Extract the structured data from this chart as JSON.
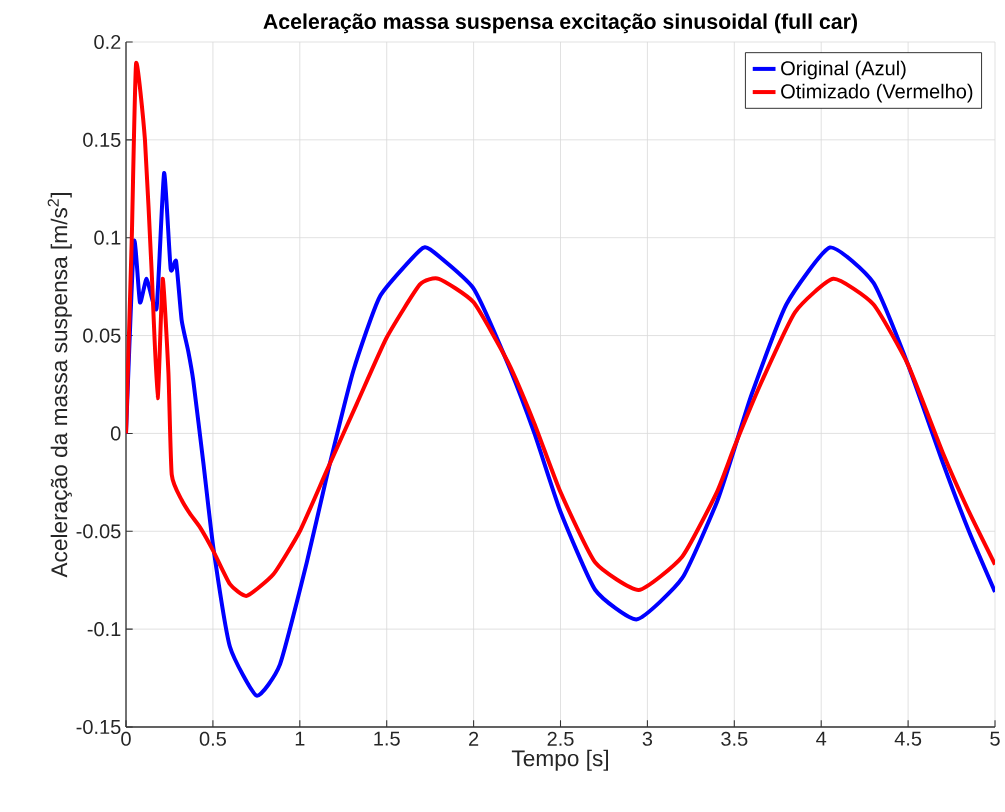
{
  "chart_data": {
    "type": "line",
    "title": "Aceleração massa suspensa excitação sinusoidal (full car)",
    "xlabel": "Tempo [s]",
    "ylabel": "Aceleração da massa suspensa [m/s$^{2}$]",
    "xlim": [
      0,
      5
    ],
    "ylim": [
      -0.15,
      0.2
    ],
    "xticks": [
      0,
      0.5,
      1,
      1.5,
      2,
      2.5,
      3,
      3.5,
      4,
      4.5,
      5
    ],
    "yticks": [
      -0.15,
      -0.1,
      -0.05,
      0,
      0.05,
      0.1,
      0.15,
      0.2
    ],
    "grid": true,
    "legend": "top right",
    "line_style": "solid",
    "marker": "none",
    "series": [
      {
        "name": "Original (Azul)",
        "color": "#0000ff",
        "x": [
          0,
          0.046,
          0.08,
          0.119,
          0.176,
          0.219,
          0.257,
          0.288,
          0.32,
          0.358,
          0.387,
          0.445,
          0.502,
          0.598,
          0.752,
          0.886,
          1.04,
          1.155,
          1.308,
          1.461,
          1.69,
          1.75,
          2.0,
          2.2,
          2.35,
          2.5,
          2.7,
          2.94,
          3.2,
          3.4,
          3.5,
          3.6,
          3.8,
          4.05,
          4.3,
          4.5,
          4.7,
          4.85,
          5.0
        ],
        "values": [
          0,
          0.098,
          0.067,
          0.079,
          0.064,
          0.133,
          0.084,
          0.088,
          0.058,
          0.042,
          0.027,
          -0.015,
          -0.058,
          -0.109,
          -0.134,
          -0.118,
          -0.066,
          -0.022,
          0.032,
          0.07,
          0.0935,
          0.094,
          0.074,
          0.035,
          0.0,
          -0.04,
          -0.08,
          -0.095,
          -0.074,
          -0.035,
          -0.008,
          0.02,
          0.066,
          0.095,
          0.077,
          0.035,
          -0.015,
          -0.05,
          -0.081
        ]
      },
      {
        "name": "Otimizado (Vermelho)",
        "color": "#ff0000",
        "x": [
          0,
          0.033,
          0.058,
          0.109,
          0.148,
          0.182,
          0.211,
          0.244,
          0.263,
          0.32,
          0.368,
          0.426,
          0.502,
          0.598,
          0.694,
          0.848,
          1.0,
          1.155,
          1.327,
          1.5,
          1.69,
          1.8,
          2.0,
          2.2,
          2.35,
          2.5,
          2.7,
          2.95,
          3.2,
          3.4,
          3.5,
          3.65,
          3.85,
          4.07,
          4.3,
          4.5,
          4.7,
          4.85,
          5.0
        ],
        "values": [
          0,
          0.099,
          0.189,
          0.15,
          0.082,
          0.018,
          0.079,
          0.031,
          -0.021,
          -0.034,
          -0.041,
          -0.048,
          -0.06,
          -0.077,
          -0.083,
          -0.072,
          -0.05,
          -0.019,
          0.015,
          0.049,
          0.076,
          0.079,
          0.067,
          0.036,
          0.005,
          -0.03,
          -0.066,
          -0.08,
          -0.063,
          -0.03,
          -0.007,
          0.025,
          0.062,
          0.079,
          0.066,
          0.035,
          -0.01,
          -0.04,
          -0.067
        ]
      }
    ]
  }
}
